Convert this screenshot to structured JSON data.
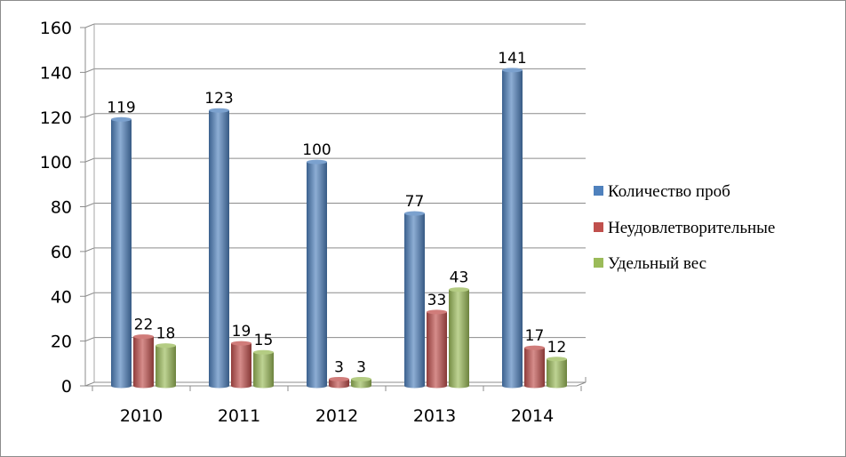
{
  "chart_data": {
    "type": "bar",
    "categories": [
      "2010",
      "2011",
      "2012",
      "2013",
      "2014"
    ],
    "series": [
      {
        "name": "Количество проб",
        "values": [
          119,
          123,
          100,
          77,
          141
        ],
        "color": "#4f81bd"
      },
      {
        "name": "Неудовлетворительные",
        "values": [
          22,
          19,
          3,
          33,
          17
        ],
        "color": "#c0504d"
      },
      {
        "name": "Удельный вес",
        "values": [
          18,
          15,
          3,
          43,
          12
        ],
        "color": "#9bbb59"
      }
    ],
    "data_labels": [
      [
        "119",
        "123",
        "100",
        "77",
        "141"
      ],
      [
        "22",
        "19",
        "3",
        "33",
        "17"
      ],
      [
        "18",
        "15",
        "3",
        "43",
        "12"
      ]
    ],
    "y_ticks": [
      "0",
      "20",
      "40",
      "60",
      "80",
      "100",
      "120",
      "140",
      "160"
    ],
    "ylim": [
      0,
      160
    ],
    "grid": true,
    "legend": "right",
    "title": "",
    "xlabel": "",
    "ylabel": ""
  }
}
